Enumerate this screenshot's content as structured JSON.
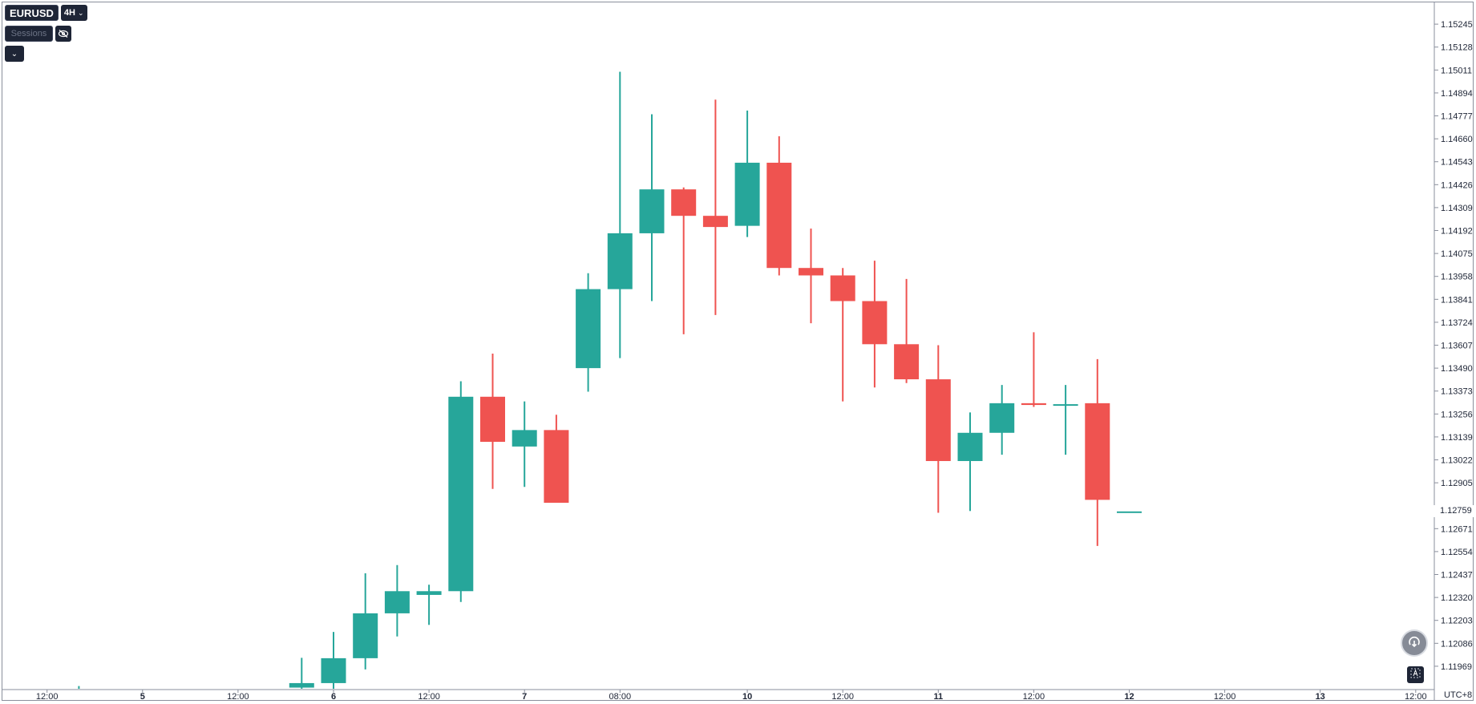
{
  "toolbar": {
    "symbol": "EURUSD",
    "timeframe": "4H",
    "sessions_placeholder": "Sessions",
    "icons": [
      "chevron-down-icon",
      "eye-off-icon",
      "reset-icon",
      "auto-scale-icon"
    ]
  },
  "timezone": "UTC+8",
  "last_price": "1.12759",
  "colors": {
    "up": "#26a69a",
    "down": "#ef5350",
    "axis_text": "#1e2536",
    "frame": "#8a8f9c"
  },
  "chart_data": {
    "type": "candlestick",
    "ylim": [
      1.1185,
      1.1536
    ],
    "y_ticks": [
      "1.15245",
      "1.15128",
      "1.15011",
      "1.14894",
      "1.14777",
      "1.14660",
      "1.14543",
      "1.14426",
      "1.14309",
      "1.14192",
      "1.14075",
      "1.13958",
      "1.13841",
      "1.13724",
      "1.13607",
      "1.13490",
      "1.13373",
      "1.13256",
      "1.13139",
      "1.13022",
      "1.12905",
      "1.12671",
      "1.12554",
      "1.12437",
      "1.12320",
      "1.12203",
      "1.12086",
      "1.11969"
    ],
    "x_ticks": [
      {
        "label": "12:00",
        "bar": -9,
        "bold": false
      },
      {
        "label": "5",
        "bar": -6,
        "bold": true
      },
      {
        "label": "12:00",
        "bar": -3,
        "bold": false
      },
      {
        "label": "6",
        "bar": 0,
        "bold": true
      },
      {
        "label": "12:00",
        "bar": 3,
        "bold": false
      },
      {
        "label": "7",
        "bar": 6,
        "bold": true
      },
      {
        "label": "08:00",
        "bar": 9,
        "bold": false
      },
      {
        "label": "10",
        "bar": 13,
        "bold": true
      },
      {
        "label": "12:00",
        "bar": 16,
        "bold": false
      },
      {
        "label": "11",
        "bar": 19,
        "bold": true
      },
      {
        "label": "12:00",
        "bar": 22,
        "bold": false
      },
      {
        "label": "12",
        "bar": 25,
        "bold": true
      },
      {
        "label": "12:00",
        "bar": 28,
        "bold": false
      },
      {
        "label": "13",
        "bar": 31,
        "bold": true
      },
      {
        "label": "12:00",
        "bar": 34,
        "bold": false
      }
    ],
    "candles": [
      {
        "bar": -8,
        "o": 1.11843,
        "h": 1.11868,
        "l": 1.11843,
        "c": 1.11843
      },
      {
        "bar": -1,
        "o": 1.1186,
        "h": 1.12012,
        "l": 1.11843,
        "c": 1.11883
      },
      {
        "bar": 0,
        "o": 1.11883,
        "h": 1.12144,
        "l": 1.11843,
        "c": 1.1201
      },
      {
        "bar": 1,
        "o": 1.1201,
        "h": 1.12443,
        "l": 1.11953,
        "c": 1.12239
      },
      {
        "bar": 2,
        "o": 1.12239,
        "h": 1.12485,
        "l": 1.12121,
        "c": 1.12352
      },
      {
        "bar": 3,
        "o": 1.12333,
        "h": 1.12385,
        "l": 1.1218,
        "c": 1.12352
      },
      {
        "bar": 4,
        "o": 1.12352,
        "h": 1.13423,
        "l": 1.12297,
        "c": 1.13344
      },
      {
        "bar": 5,
        "o": 1.13344,
        "h": 1.13564,
        "l": 1.12874,
        "c": 1.13114
      },
      {
        "bar": 6,
        "o": 1.1309,
        "h": 1.1332,
        "l": 1.12884,
        "c": 1.13174
      },
      {
        "bar": 7,
        "o": 1.13174,
        "h": 1.13252,
        "l": 1.12803,
        "c": 1.12803
      },
      {
        "bar": 8,
        "o": 1.1349,
        "h": 1.13974,
        "l": 1.1337,
        "c": 1.13893
      },
      {
        "bar": 9,
        "o": 1.13893,
        "h": 1.15002,
        "l": 1.13541,
        "c": 1.14178
      },
      {
        "bar": 10,
        "o": 1.14178,
        "h": 1.14785,
        "l": 1.13832,
        "c": 1.14402
      },
      {
        "bar": 11,
        "o": 1.14402,
        "h": 1.14412,
        "l": 1.13663,
        "c": 1.14267
      },
      {
        "bar": 12,
        "o": 1.14267,
        "h": 1.1486,
        "l": 1.13761,
        "c": 1.1421
      },
      {
        "bar": 13,
        "o": 1.14216,
        "h": 1.14804,
        "l": 1.14159,
        "c": 1.14538
      },
      {
        "bar": 14,
        "o": 1.14538,
        "h": 1.14673,
        "l": 1.13963,
        "c": 1.14001
      },
      {
        "bar": 15,
        "o": 1.14001,
        "h": 1.14202,
        "l": 1.13719,
        "c": 1.13963
      },
      {
        "bar": 16,
        "o": 1.13963,
        "h": 1.14001,
        "l": 1.1332,
        "c": 1.13832
      },
      {
        "bar": 17,
        "o": 1.13832,
        "h": 1.14038,
        "l": 1.13391,
        "c": 1.13612
      },
      {
        "bar": 18,
        "o": 1.13612,
        "h": 1.13945,
        "l": 1.13414,
        "c": 1.13433
      },
      {
        "bar": 19,
        "o": 1.13433,
        "h": 1.13607,
        "l": 1.12752,
        "c": 1.13016
      },
      {
        "bar": 20,
        "o": 1.13016,
        "h": 1.13264,
        "l": 1.12761,
        "c": 1.1316
      },
      {
        "bar": 21,
        "o": 1.1316,
        "h": 1.13404,
        "l": 1.13048,
        "c": 1.13311
      },
      {
        "bar": 22,
        "o": 1.13311,
        "h": 1.13673,
        "l": 1.13292,
        "c": 1.13302
      },
      {
        "bar": 23,
        "o": 1.13306,
        "h": 1.13404,
        "l": 1.13048,
        "c": 1.13306
      },
      {
        "bar": 24,
        "o": 1.13311,
        "h": 1.13536,
        "l": 1.12583,
        "c": 1.12818
      },
      {
        "bar": 25,
        "o": 1.12759,
        "h": 1.12759,
        "l": 1.12759,
        "c": 1.12759
      }
    ]
  }
}
